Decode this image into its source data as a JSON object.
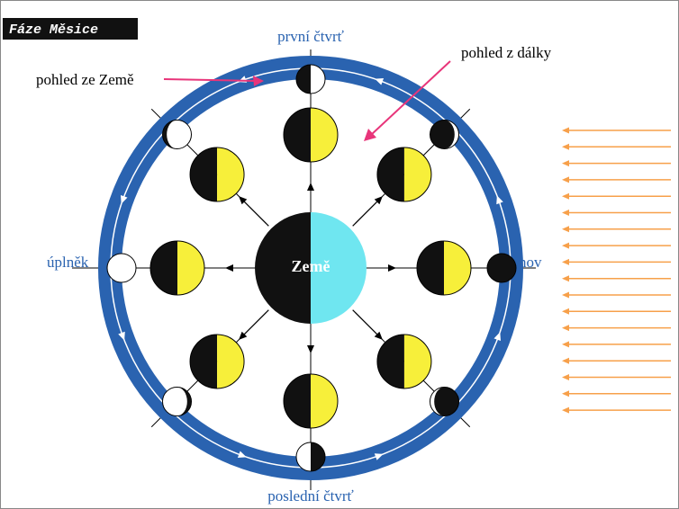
{
  "header": {
    "title": "Fáze Měsice"
  },
  "labels": {
    "first_quarter": "první čtvrť",
    "last_quarter": "poslední čtvrť",
    "full_moon": "úplněk",
    "new_moon": "nov",
    "earth": "Země",
    "view_from_earth": "pohled ze Země",
    "view_from_afar": "pohled z dálky"
  }
}
